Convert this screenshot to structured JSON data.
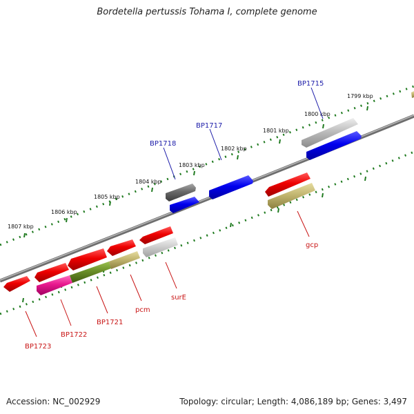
{
  "title": "Bordetella pertussis Tohama I, complete genome",
  "footer": {
    "accession_label": "Accession:",
    "accession": "NC_002929",
    "topology_label": "Topology:",
    "topology": "circular",
    "length_label": "Length:",
    "length": "4,086,189 bp",
    "genes_label": "Genes:",
    "genes": "3,497"
  },
  "colors": {
    "background": "#ffffff",
    "backbone": "#8a8a8a",
    "tick": "#1f7a1f",
    "label_blue": "#1a1aa8",
    "label_red": "#c81414"
  },
  "scale_labels": [
    "1807 kbp",
    "1806 kbp",
    "1805 kbp",
    "1804 kbp",
    "1803 kbp",
    "1802 kbp",
    "1801 kbp",
    "1800 kbp",
    "1799 kbp"
  ],
  "gene_labels_top": [
    "BP1718",
    "BP1717",
    "BP1715"
  ],
  "gene_labels_bottom": [
    "BP1723",
    "BP1722",
    "BP1721",
    "pcm",
    "surE",
    "gcp"
  ],
  "feature_colors": {
    "forward": [
      "dark-gray",
      "blue",
      "blue",
      "gray",
      "blue"
    ],
    "reverse_outer": [
      "red",
      "red",
      "red",
      "red",
      "red",
      "red"
    ],
    "reverse_inner": [
      "magenta",
      "olive-green",
      "khaki",
      "light-gray",
      "khaki"
    ]
  }
}
